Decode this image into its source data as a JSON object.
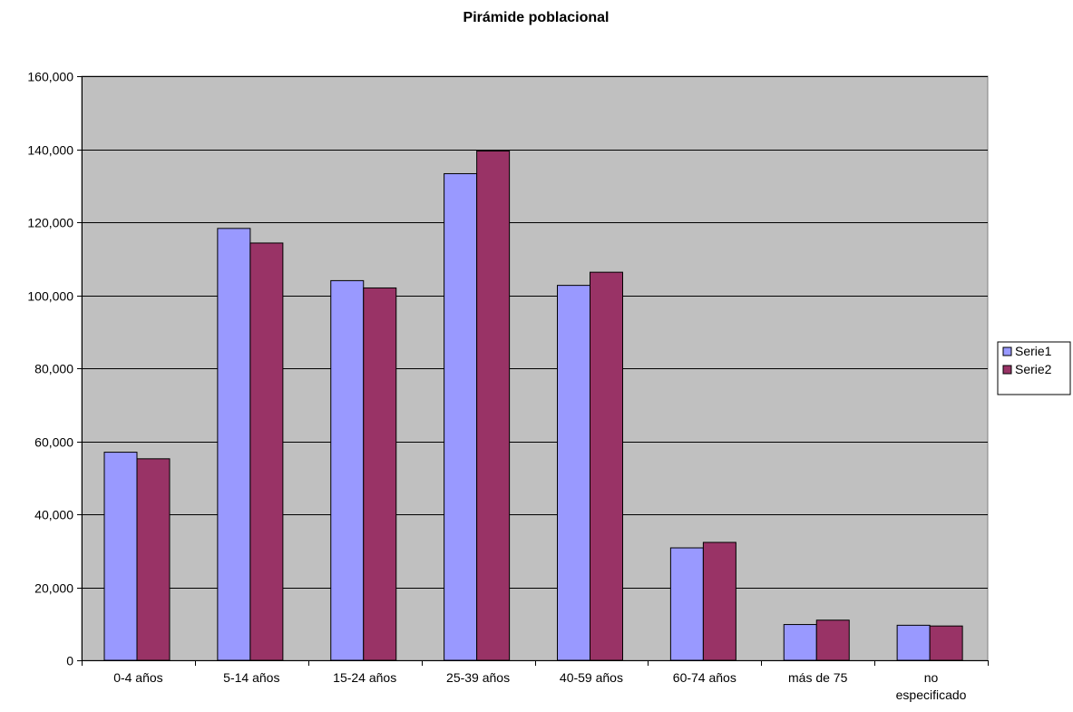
{
  "chart_data": {
    "type": "bar",
    "title": "Pirámide poblacional",
    "xlabel": "",
    "ylabel": "",
    "categories": [
      "0-4 años",
      "5-14 años",
      "15-24 años",
      "25-39 años",
      "40-59 años",
      "60-74 años",
      "más de 75",
      "no especificado"
    ],
    "series": [
      {
        "name": "Serie1",
        "color": "#9999FF",
        "values": [
          57000,
          118300,
          104000,
          133300,
          102700,
          30800,
          9800,
          9600
        ]
      },
      {
        "name": "Serie2",
        "color": "#993366",
        "values": [
          55200,
          114300,
          102000,
          139500,
          106300,
          32300,
          11000,
          9400
        ]
      }
    ],
    "ylim": [
      0,
      160000
    ],
    "yticks": [
      0,
      20000,
      40000,
      60000,
      80000,
      100000,
      120000,
      140000,
      160000
    ],
    "ytick_labels": [
      "0",
      "20,000",
      "40,000",
      "60,000",
      "80,000",
      "100,000",
      "120,000",
      "140,000",
      "160,000"
    ],
    "grid": true,
    "plot_background": "#C0C0C0",
    "legend_position": "right"
  }
}
